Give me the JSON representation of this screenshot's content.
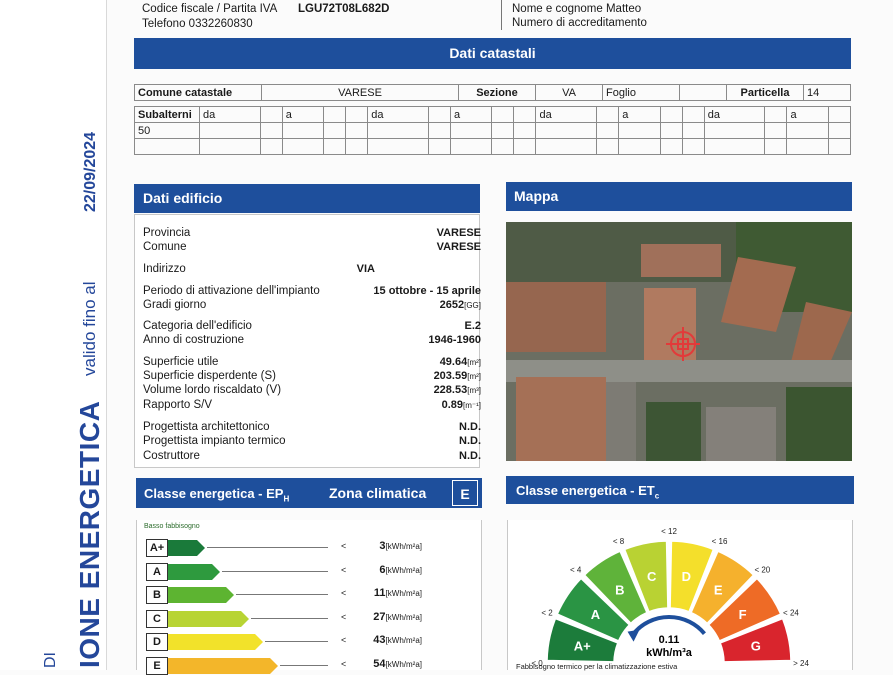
{
  "header": {
    "codice_fiscale_label": "Codice fiscale / Partita IVA",
    "codice_fiscale_value": "LGU72T08L682D",
    "telefono": "Telefono 0332260830",
    "nome_label": "Nome e cognome Matteo",
    "accreditamento_label": "Numero di accreditamento"
  },
  "side": {
    "date": "22/09/2024",
    "valido": "valido fino al",
    "title": "IONE ENERGETICA",
    "di": "DI"
  },
  "catastali": {
    "title": "Dati catastali",
    "comune_label": "Comune catastale",
    "comune_value": "VARESE",
    "sezione_label": "Sezione",
    "sezione_value": "VA",
    "foglio_label": "Foglio",
    "particella_label": "Particella",
    "particella_value": "14",
    "subalterni_label": "Subalterni",
    "da": "da",
    "a": "a",
    "sub_value": "50"
  },
  "edificio": {
    "title": "Dati edificio",
    "rows": [
      {
        "label": "Provincia",
        "value": "VARESE",
        "unit": ""
      },
      {
        "label": "Comune",
        "value": "VARESE",
        "unit": ""
      },
      {
        "label": "Indirizzo",
        "value": "VIA",
        "unit": ""
      },
      {
        "label": "Periodo di attivazione dell'impianto",
        "value": "15 ottobre - 15 aprile",
        "unit": ""
      },
      {
        "label": "Gradi giorno",
        "value": "2652",
        "unit": "[GG]"
      },
      {
        "label": "Categoria dell'edificio",
        "value": "E.2",
        "unit": ""
      },
      {
        "label": "Anno di costruzione",
        "value": "1946-1960",
        "unit": ""
      },
      {
        "label": "Superficie utile",
        "value": "49.64",
        "unit": "[m²]"
      },
      {
        "label": "Superficie disperdente (S)",
        "value": "203.59",
        "unit": "[m²]"
      },
      {
        "label": "Volume lordo riscaldato (V)",
        "value": "228.53",
        "unit": "[m³]"
      },
      {
        "label": "Rapporto S/V",
        "value": "0.89",
        "unit": "[m⁻¹]"
      },
      {
        "label": "Progettista architettonico",
        "value": "N.D.",
        "unit": ""
      },
      {
        "label": "Progettista impianto termico",
        "value": "N.D.",
        "unit": ""
      },
      {
        "label": "Costruttore",
        "value": "N.D.",
        "unit": ""
      }
    ]
  },
  "mappa": {
    "title": "Mappa"
  },
  "ep": {
    "title": "Classe energetica - EP",
    "title_sub": "H",
    "zona_label": "Zona climatica",
    "zona_value": "E",
    "basso": "Basso fabbisogno",
    "rows": [
      {
        "cls": "A+",
        "value": "3",
        "unit": "[kWh/m²a]",
        "color": "#1a7a3a",
        "level": 0.2
      },
      {
        "cls": "A",
        "value": "6",
        "unit": "[kWh/m²a]",
        "color": "#2e9a3e",
        "level": 0.3
      },
      {
        "cls": "B",
        "value": "11",
        "unit": "[kWh/m²a]",
        "color": "#5db431",
        "level": 0.4
      },
      {
        "cls": "C",
        "value": "27",
        "unit": "[kWh/m²a]",
        "color": "#b8d434",
        "level": 0.5
      },
      {
        "cls": "D",
        "value": "43",
        "unit": "[kWh/m²a]",
        "color": "#f2e22a",
        "level": 0.6
      },
      {
        "cls": "E",
        "value": "54",
        "unit": "[kWh/m²a]",
        "color": "#f3b62a",
        "level": 0.7
      }
    ],
    "lt": "<"
  },
  "et": {
    "title": "Classe energetica - ET",
    "title_sub": "c",
    "gauge_value": "0.11",
    "gauge_unit": "kWh/m³a",
    "footer": "Fabbisogno termico per la climatizzazione estiva",
    "segments": [
      {
        "cls": "A+",
        "color": "#1c7c3b"
      },
      {
        "cls": "A",
        "color": "#2a9444"
      },
      {
        "cls": "B",
        "color": "#5fb33a"
      },
      {
        "cls": "C",
        "color": "#b9d233"
      },
      {
        "cls": "D",
        "color": "#f4df2b"
      },
      {
        "cls": "E",
        "color": "#f5b12d"
      },
      {
        "cls": "F",
        "color": "#ee6b26"
      },
      {
        "cls": "G",
        "color": "#d9252d"
      }
    ],
    "ticks": [
      "< 0",
      "< 2",
      "< 4",
      "< 8",
      "< 12",
      "< 16",
      "< 20",
      "< 24",
      "> 24"
    ]
  }
}
